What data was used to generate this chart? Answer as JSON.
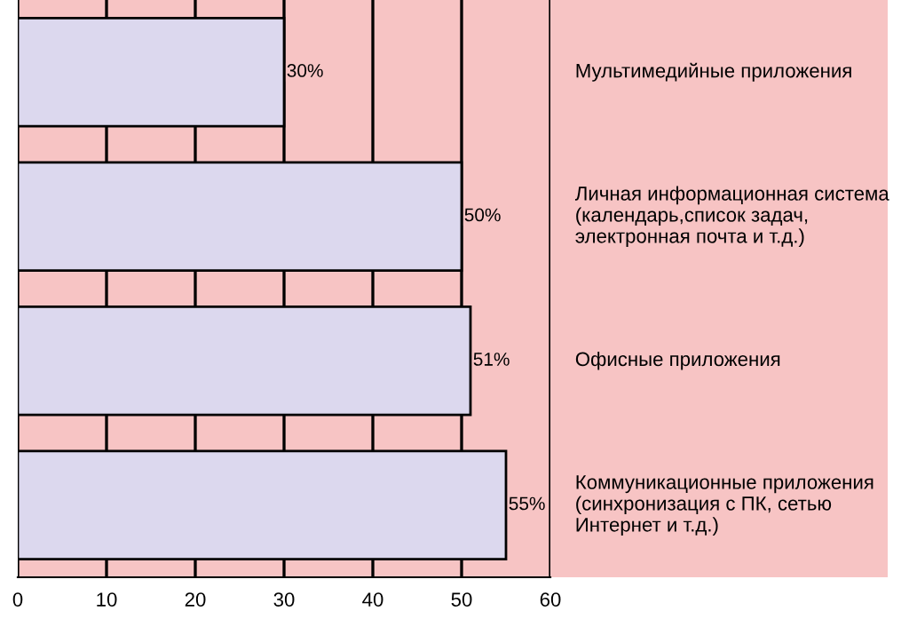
{
  "chart_data": {
    "type": "bar",
    "orientation": "horizontal",
    "categories": [
      "Мультимедийные приложения",
      "Личная информационная система (календарь,список задач, электронная почта и т.д.)",
      "Офисные приложения",
      "Коммуникационные приложения (синхронизация с ПК, сетью Интернет и т.д.)"
    ],
    "values": [
      30,
      50,
      51,
      55
    ],
    "value_labels": [
      "30%",
      "50%",
      "51%",
      "55%"
    ],
    "color": "#dcd8ee",
    "xlim": [
      0,
      60
    ],
    "xticks": [
      0,
      10,
      20,
      30,
      40,
      50,
      60
    ],
    "grid": "x"
  }
}
